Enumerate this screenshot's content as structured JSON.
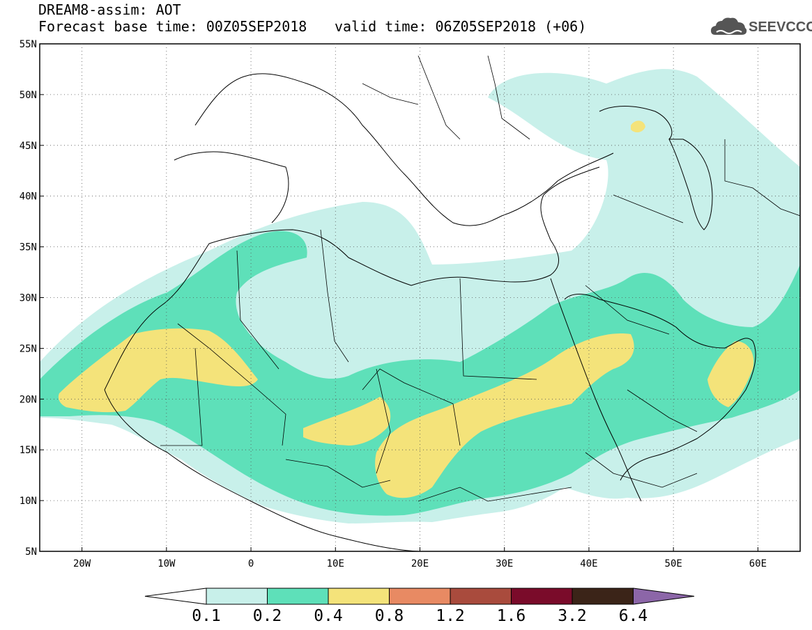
{
  "header": {
    "title": "DREAM8-assim: AOT",
    "base_time": "Forecast base time: 00Z05SEP2018",
    "valid_time": "valid time: 06Z05SEP2018 (+06)"
  },
  "logo": {
    "text": "SEEVCCC",
    "icon": "cloud-icon"
  },
  "map": {
    "lon_range": [
      -25,
      65
    ],
    "lat_range": [
      5,
      55
    ],
    "x_ticks": [
      "20W",
      "10W",
      "0",
      "10E",
      "20E",
      "30E",
      "40E",
      "50E",
      "60E"
    ],
    "x_tick_values": [
      -20,
      -10,
      0,
      10,
      20,
      30,
      40,
      50,
      60
    ],
    "y_ticks": [
      "55N",
      "50N",
      "45N",
      "40N",
      "35N",
      "30N",
      "25N",
      "20N",
      "15N",
      "10N",
      "5N"
    ],
    "y_tick_values": [
      55,
      50,
      45,
      40,
      35,
      30,
      25,
      20,
      15,
      10,
      5
    ],
    "grid": "dotted"
  },
  "colorbar": {
    "labels": [
      "0.1",
      "0.2",
      "0.4",
      "0.8",
      "1.2",
      "1.6",
      "3.2",
      "6.4"
    ],
    "colors": [
      "#c8f0ea",
      "#5ee0b9",
      "#f4e37a",
      "#e88a63",
      "#a94b3d",
      "#7a0b2a",
      "#3b2418"
    ],
    "under_color": "#ffffff",
    "over_color": "#8c66a8"
  },
  "colors": {
    "level1": "#c8f0ea",
    "level2": "#5ee0b9",
    "level3": "#f4e37a",
    "level4": "#e88a63"
  }
}
